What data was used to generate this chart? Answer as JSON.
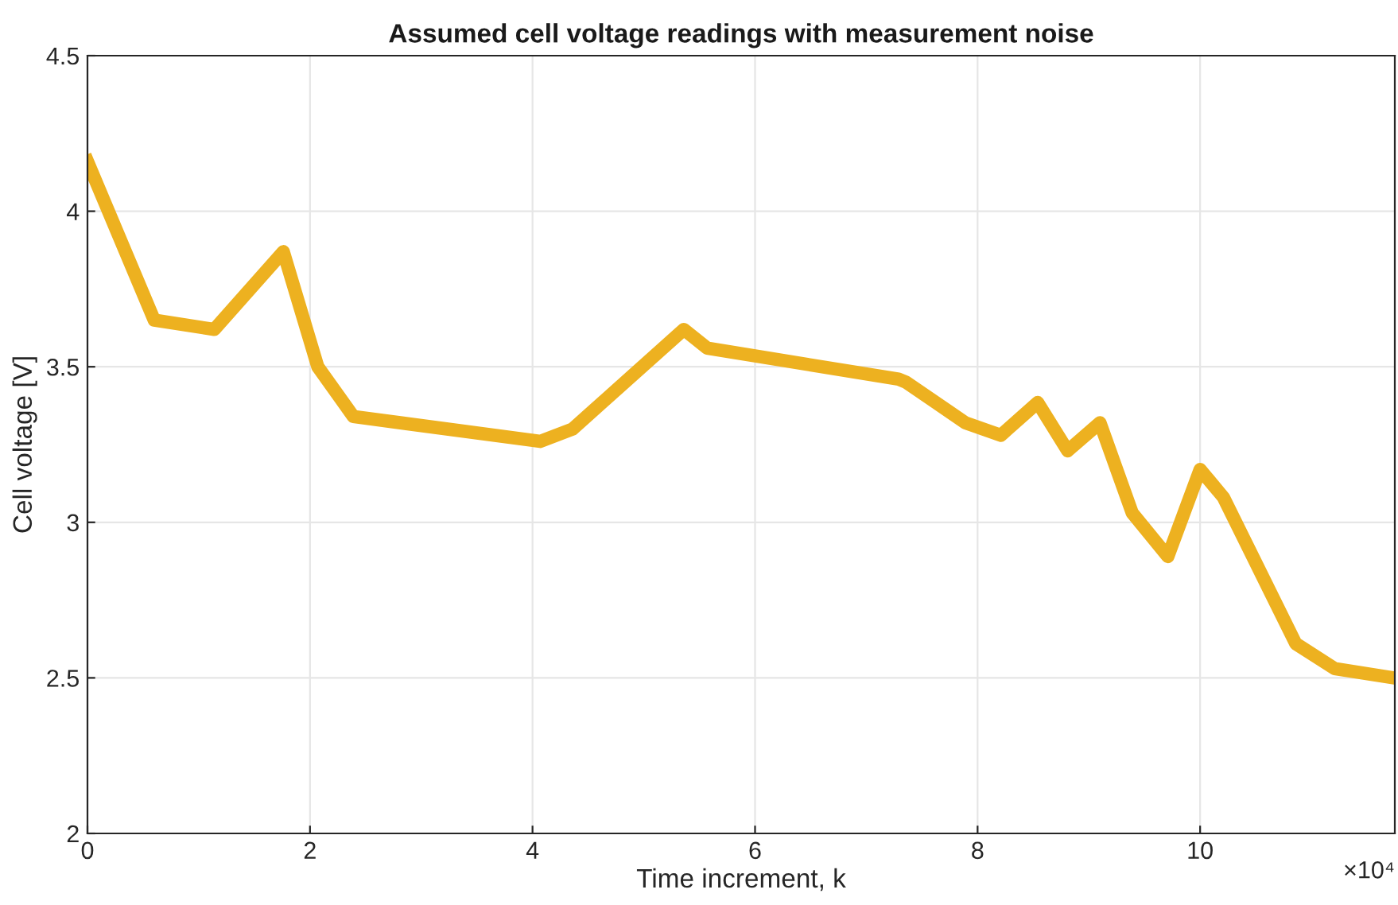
{
  "chart_data": {
    "type": "line",
    "title": "Assumed cell voltage readings with measurement noise",
    "xlabel": "Time increment, k",
    "ylabel": "Cell voltage [V]",
    "annotations": [
      "×10⁴"
    ],
    "x": [
      0,
      0.6,
      1.14,
      1.76,
      2.07,
      2.39,
      4.07,
      4.36,
      5.36,
      5.57,
      7.29,
      7.36,
      7.89,
      8.21,
      8.54,
      8.81,
      9.1,
      9.39,
      9.71,
      10.0,
      10.21,
      10.86,
      11.21,
      11.74
    ],
    "series": [
      {
        "color": "#edb120",
        "values": [
          4.16,
          3.65,
          3.62,
          3.87,
          3.5,
          3.34,
          3.26,
          3.3,
          3.62,
          3.56,
          3.46,
          3.45,
          3.32,
          3.28,
          3.385,
          3.23,
          3.32,
          3.03,
          2.89,
          3.17,
          3.08,
          2.61,
          2.53,
          2.5
        ]
      }
    ],
    "xlim": [
      0,
      11.75
    ],
    "ylim": [
      2,
      4.5
    ],
    "xticks": [
      0,
      2,
      4,
      6,
      8,
      10
    ],
    "yticks": [
      2,
      2.5,
      3,
      3.5,
      4,
      4.5
    ],
    "grid": true,
    "marker": "none",
    "line_style": "solid"
  }
}
